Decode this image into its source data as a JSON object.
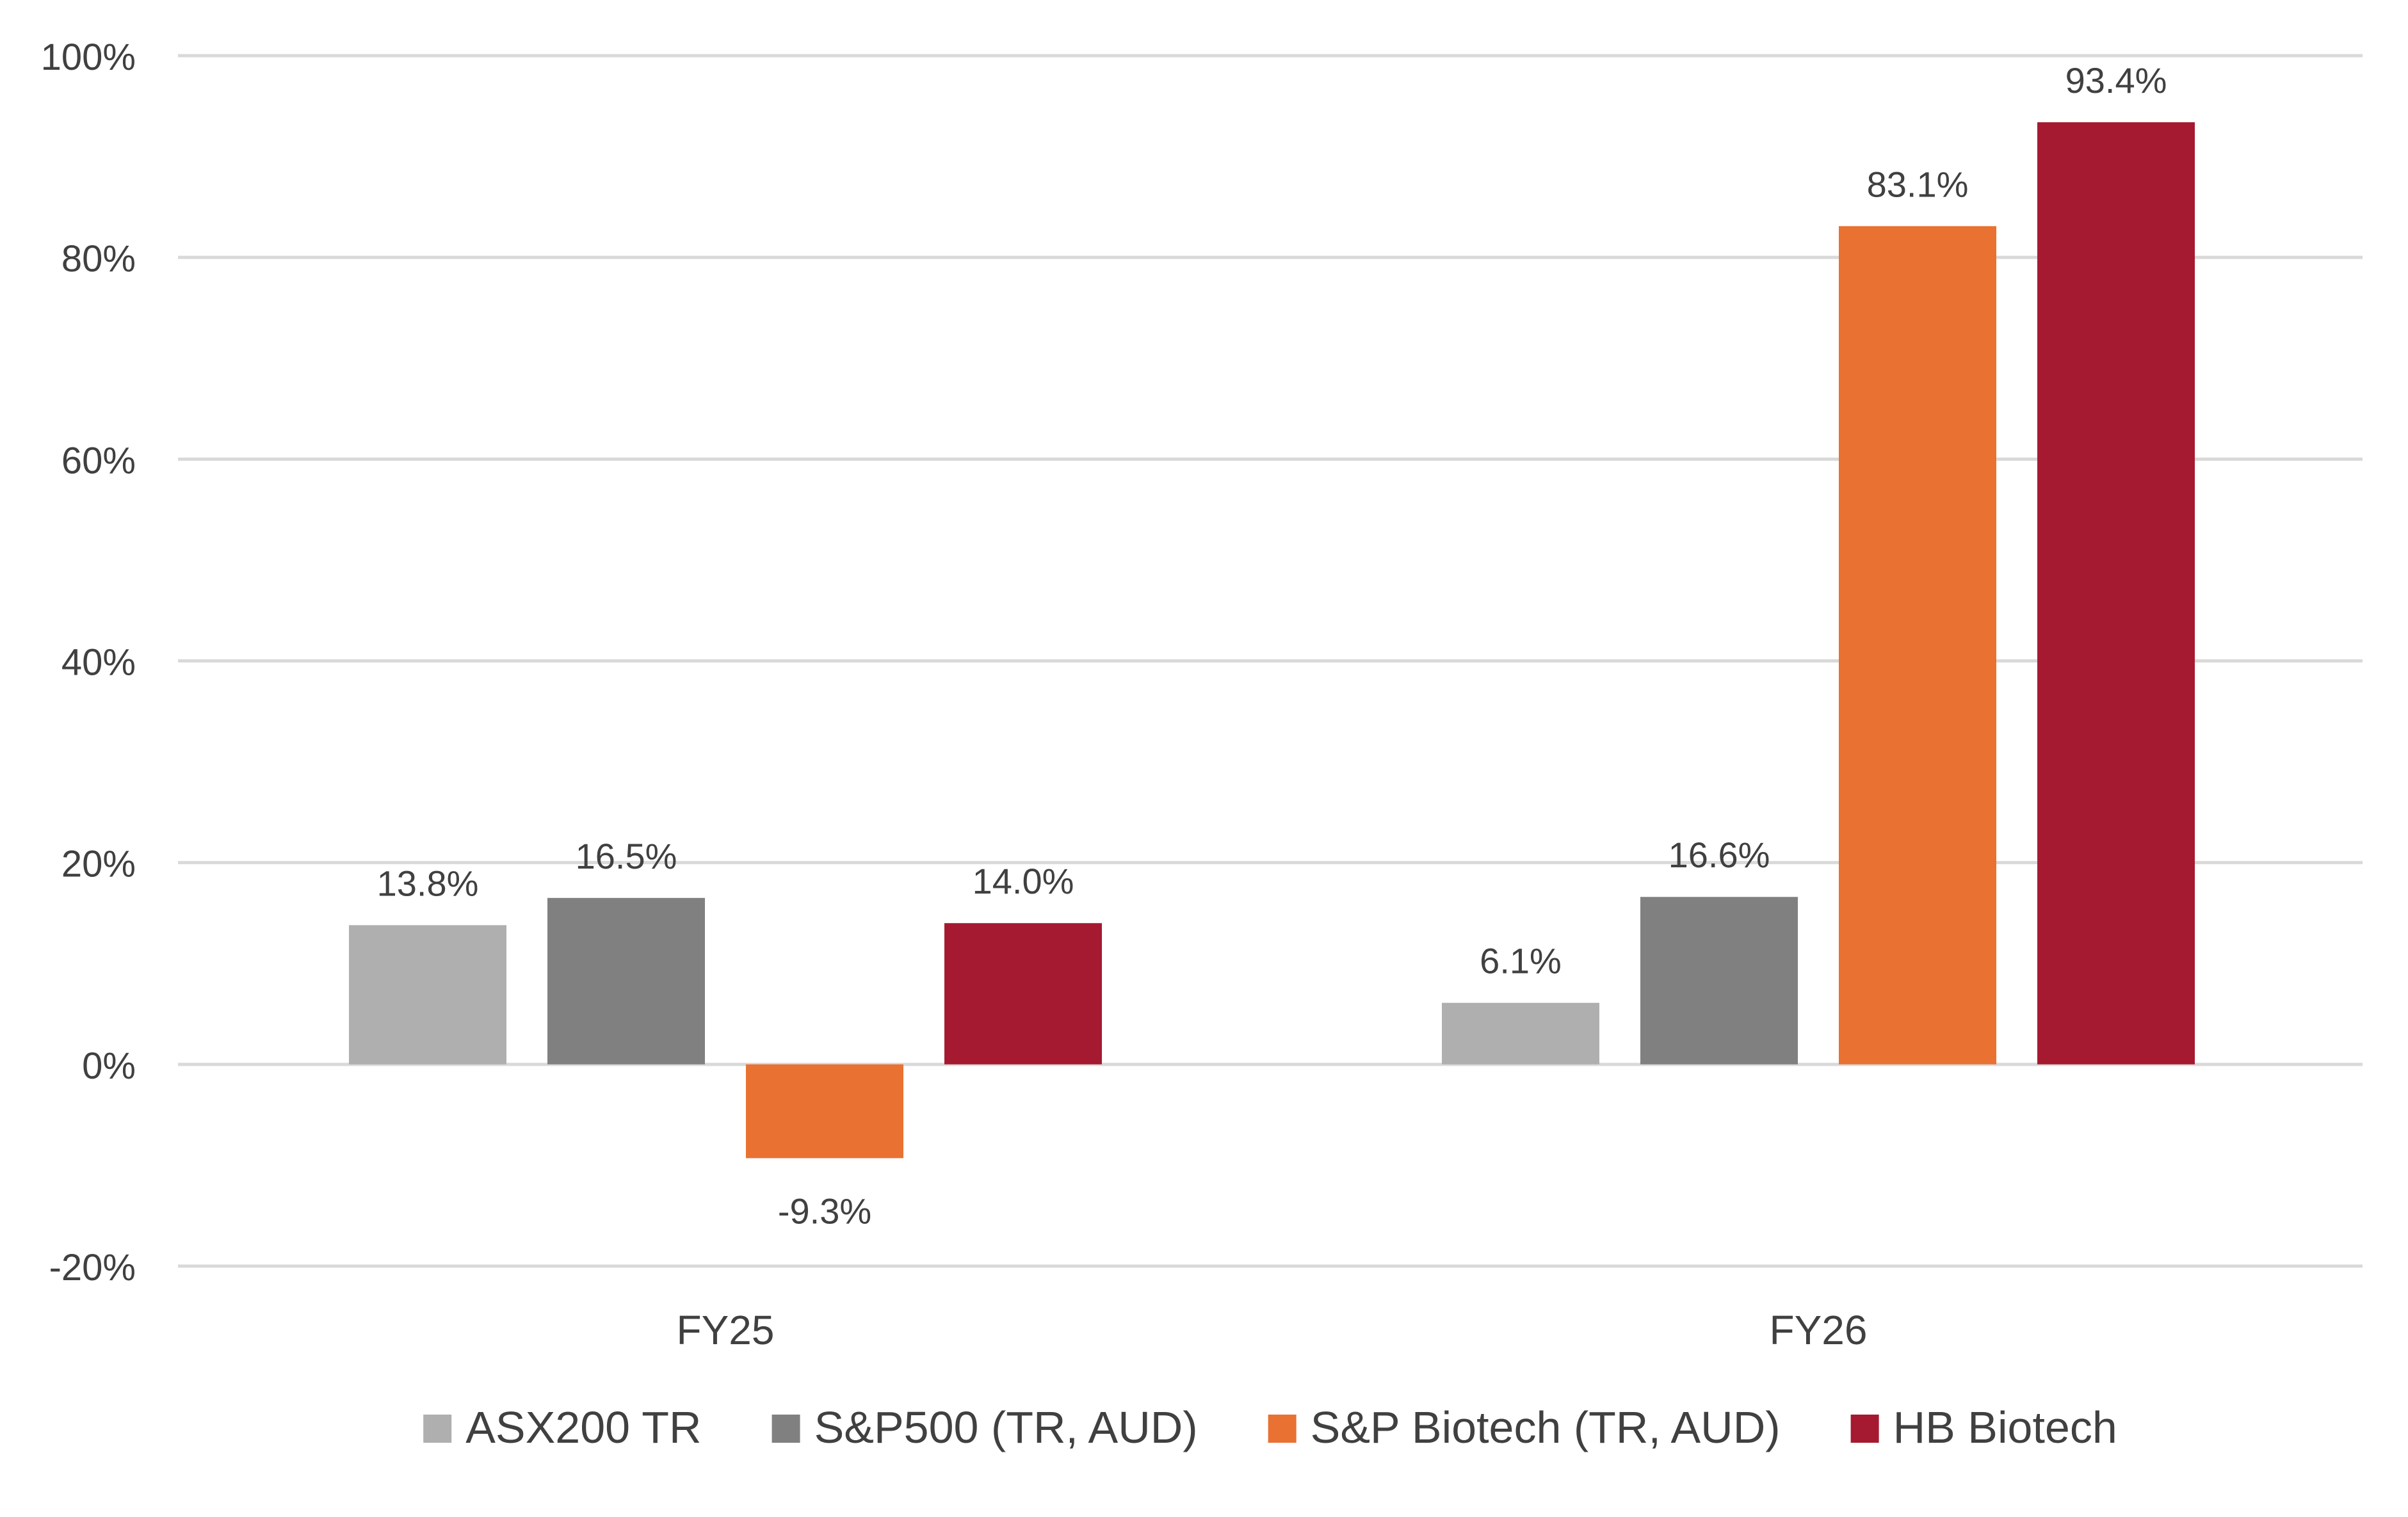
{
  "chart_data": {
    "type": "bar",
    "title": "",
    "xlabel": "",
    "ylabel": "",
    "categories": [
      "FY25",
      "FY26"
    ],
    "series": [
      {
        "name": "ASX200 TR",
        "color": "#AFAFAF",
        "values": [
          13.8,
          6.1
        ],
        "labels": [
          "13.8%",
          "6.1%"
        ]
      },
      {
        "name": "S&P500 (TR, AUD)",
        "color": "#808080",
        "values": [
          16.5,
          16.6
        ],
        "labels": [
          "16.5%",
          "16.6%"
        ]
      },
      {
        "name": "S&P Biotech (TR, AUD)",
        "color": "#E97132",
        "values": [
          -9.3,
          83.1
        ],
        "labels": [
          "-9.3%",
          "83.1%"
        ]
      },
      {
        "name": "HB Biotech",
        "color": "#A51A30",
        "values": [
          14.0,
          93.4
        ],
        "labels": [
          "14.0%",
          "93.4%"
        ]
      }
    ],
    "ylim": [
      -20,
      100
    ],
    "yticks": [
      -20,
      0,
      20,
      40,
      60,
      80,
      100
    ],
    "ytick_labels": [
      "-20%",
      "0%",
      "20%",
      "40%",
      "60%",
      "80%",
      "100%"
    ],
    "grid": true,
    "legend_position": "bottom"
  }
}
